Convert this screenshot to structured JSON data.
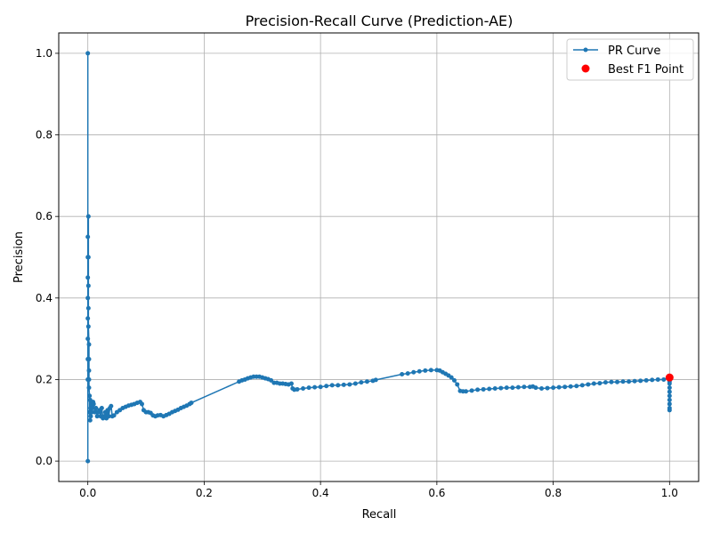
{
  "chart_data": {
    "type": "line",
    "title": "Precision-Recall Curve (Prediction-AE)",
    "xlabel": "Recall",
    "ylabel": "Precision",
    "xlim": [
      -0.05,
      1.05
    ],
    "ylim": [
      -0.05,
      1.05
    ],
    "xticks": [
      0.0,
      0.2,
      0.4,
      0.6,
      0.8,
      1.0
    ],
    "yticks": [
      0.0,
      0.2,
      0.4,
      0.6,
      0.8,
      1.0
    ],
    "xtick_labels": [
      "0.0",
      "0.2",
      "0.4",
      "0.6",
      "0.8",
      "1.0"
    ],
    "ytick_labels": [
      "0.0",
      "0.2",
      "0.4",
      "0.6",
      "0.8",
      "1.0"
    ],
    "grid": true,
    "legend": {
      "position": "top-right",
      "entries": [
        "PR Curve",
        "Best F1 Point"
      ]
    },
    "series": [
      {
        "name": "PR Curve",
        "color": "#1f77b4",
        "marker": "circle",
        "x": [
          0.0,
          0.0,
          0.0,
          0.0,
          0.0,
          0.0,
          0.0,
          0.0,
          0.0,
          0.0,
          0.001,
          0.001,
          0.001,
          0.001,
          0.001,
          0.002,
          0.002,
          0.002,
          0.002,
          0.002,
          0.003,
          0.003,
          0.004,
          0.004,
          0.005,
          0.005,
          0.006,
          0.007,
          0.008,
          0.009,
          0.01,
          0.012,
          0.014,
          0.016,
          0.018,
          0.02,
          0.022,
          0.024,
          0.026,
          0.028,
          0.03,
          0.032,
          0.034,
          0.036,
          0.038,
          0.04,
          0.042,
          0.045,
          0.05,
          0.055,
          0.06,
          0.065,
          0.07,
          0.075,
          0.08,
          0.085,
          0.09,
          0.093,
          0.096,
          0.1,
          0.104,
          0.108,
          0.112,
          0.116,
          0.12,
          0.125,
          0.13,
          0.135,
          0.14,
          0.145,
          0.15,
          0.155,
          0.16,
          0.165,
          0.17,
          0.175,
          0.178,
          0.26,
          0.265,
          0.27,
          0.275,
          0.28,
          0.285,
          0.29,
          0.295,
          0.3,
          0.305,
          0.31,
          0.315,
          0.32,
          0.325,
          0.33,
          0.335,
          0.34,
          0.345,
          0.35,
          0.352,
          0.355,
          0.36,
          0.37,
          0.38,
          0.39,
          0.4,
          0.41,
          0.42,
          0.43,
          0.44,
          0.45,
          0.46,
          0.47,
          0.48,
          0.49,
          0.495,
          0.54,
          0.55,
          0.56,
          0.57,
          0.58,
          0.59,
          0.6,
          0.605,
          0.61,
          0.615,
          0.62,
          0.625,
          0.63,
          0.635,
          0.64,
          0.645,
          0.65,
          0.66,
          0.67,
          0.68,
          0.69,
          0.7,
          0.71,
          0.72,
          0.73,
          0.74,
          0.75,
          0.76,
          0.765,
          0.77,
          0.78,
          0.79,
          0.8,
          0.81,
          0.82,
          0.83,
          0.84,
          0.85,
          0.86,
          0.87,
          0.88,
          0.89,
          0.9,
          0.91,
          0.92,
          0.93,
          0.94,
          0.95,
          0.96,
          0.97,
          0.98,
          0.99,
          1.0,
          1.0,
          1.0,
          1.0,
          1.0,
          1.0,
          1.0,
          1.0,
          1.0,
          1.0
        ],
        "y": [
          0.0,
          1.0,
          0.2,
          0.25,
          0.3,
          0.35,
          0.4,
          0.45,
          0.5,
          0.55,
          0.6,
          0.5,
          0.43,
          0.375,
          0.33,
          0.286,
          0.25,
          0.222,
          0.2,
          0.18,
          0.16,
          0.12,
          0.1,
          0.15,
          0.13,
          0.11,
          0.14,
          0.12,
          0.13,
          0.145,
          0.14,
          0.12,
          0.13,
          0.11,
          0.12,
          0.125,
          0.11,
          0.13,
          0.105,
          0.11,
          0.12,
          0.105,
          0.125,
          0.11,
          0.13,
          0.135,
          0.11,
          0.112,
          0.12,
          0.125,
          0.13,
          0.133,
          0.136,
          0.138,
          0.14,
          0.143,
          0.145,
          0.14,
          0.125,
          0.12,
          0.12,
          0.118,
          0.112,
          0.11,
          0.112,
          0.113,
          0.11,
          0.113,
          0.116,
          0.12,
          0.123,
          0.126,
          0.13,
          0.133,
          0.136,
          0.14,
          0.143,
          0.195,
          0.198,
          0.2,
          0.203,
          0.205,
          0.207,
          0.207,
          0.207,
          0.205,
          0.203,
          0.201,
          0.198,
          0.192,
          0.192,
          0.19,
          0.19,
          0.189,
          0.188,
          0.19,
          0.178,
          0.175,
          0.176,
          0.178,
          0.18,
          0.181,
          0.182,
          0.184,
          0.186,
          0.186,
          0.187,
          0.188,
          0.19,
          0.193,
          0.195,
          0.197,
          0.199,
          0.213,
          0.215,
          0.218,
          0.22,
          0.222,
          0.223,
          0.223,
          0.222,
          0.218,
          0.214,
          0.21,
          0.205,
          0.198,
          0.188,
          0.172,
          0.171,
          0.171,
          0.173,
          0.175,
          0.176,
          0.177,
          0.178,
          0.179,
          0.18,
          0.18,
          0.181,
          0.182,
          0.182,
          0.183,
          0.18,
          0.178,
          0.179,
          0.18,
          0.181,
          0.182,
          0.183,
          0.184,
          0.186,
          0.188,
          0.19,
          0.191,
          0.193,
          0.194,
          0.194,
          0.195,
          0.195,
          0.196,
          0.197,
          0.198,
          0.199,
          0.2,
          0.2,
          0.205,
          0.195,
          0.19,
          0.18,
          0.17,
          0.16,
          0.15,
          0.14,
          0.13,
          0.125
        ]
      },
      {
        "name": "Best F1 Point",
        "color": "#ff0000",
        "marker": "circle",
        "x": [
          1.0
        ],
        "y": [
          0.205
        ]
      }
    ]
  }
}
